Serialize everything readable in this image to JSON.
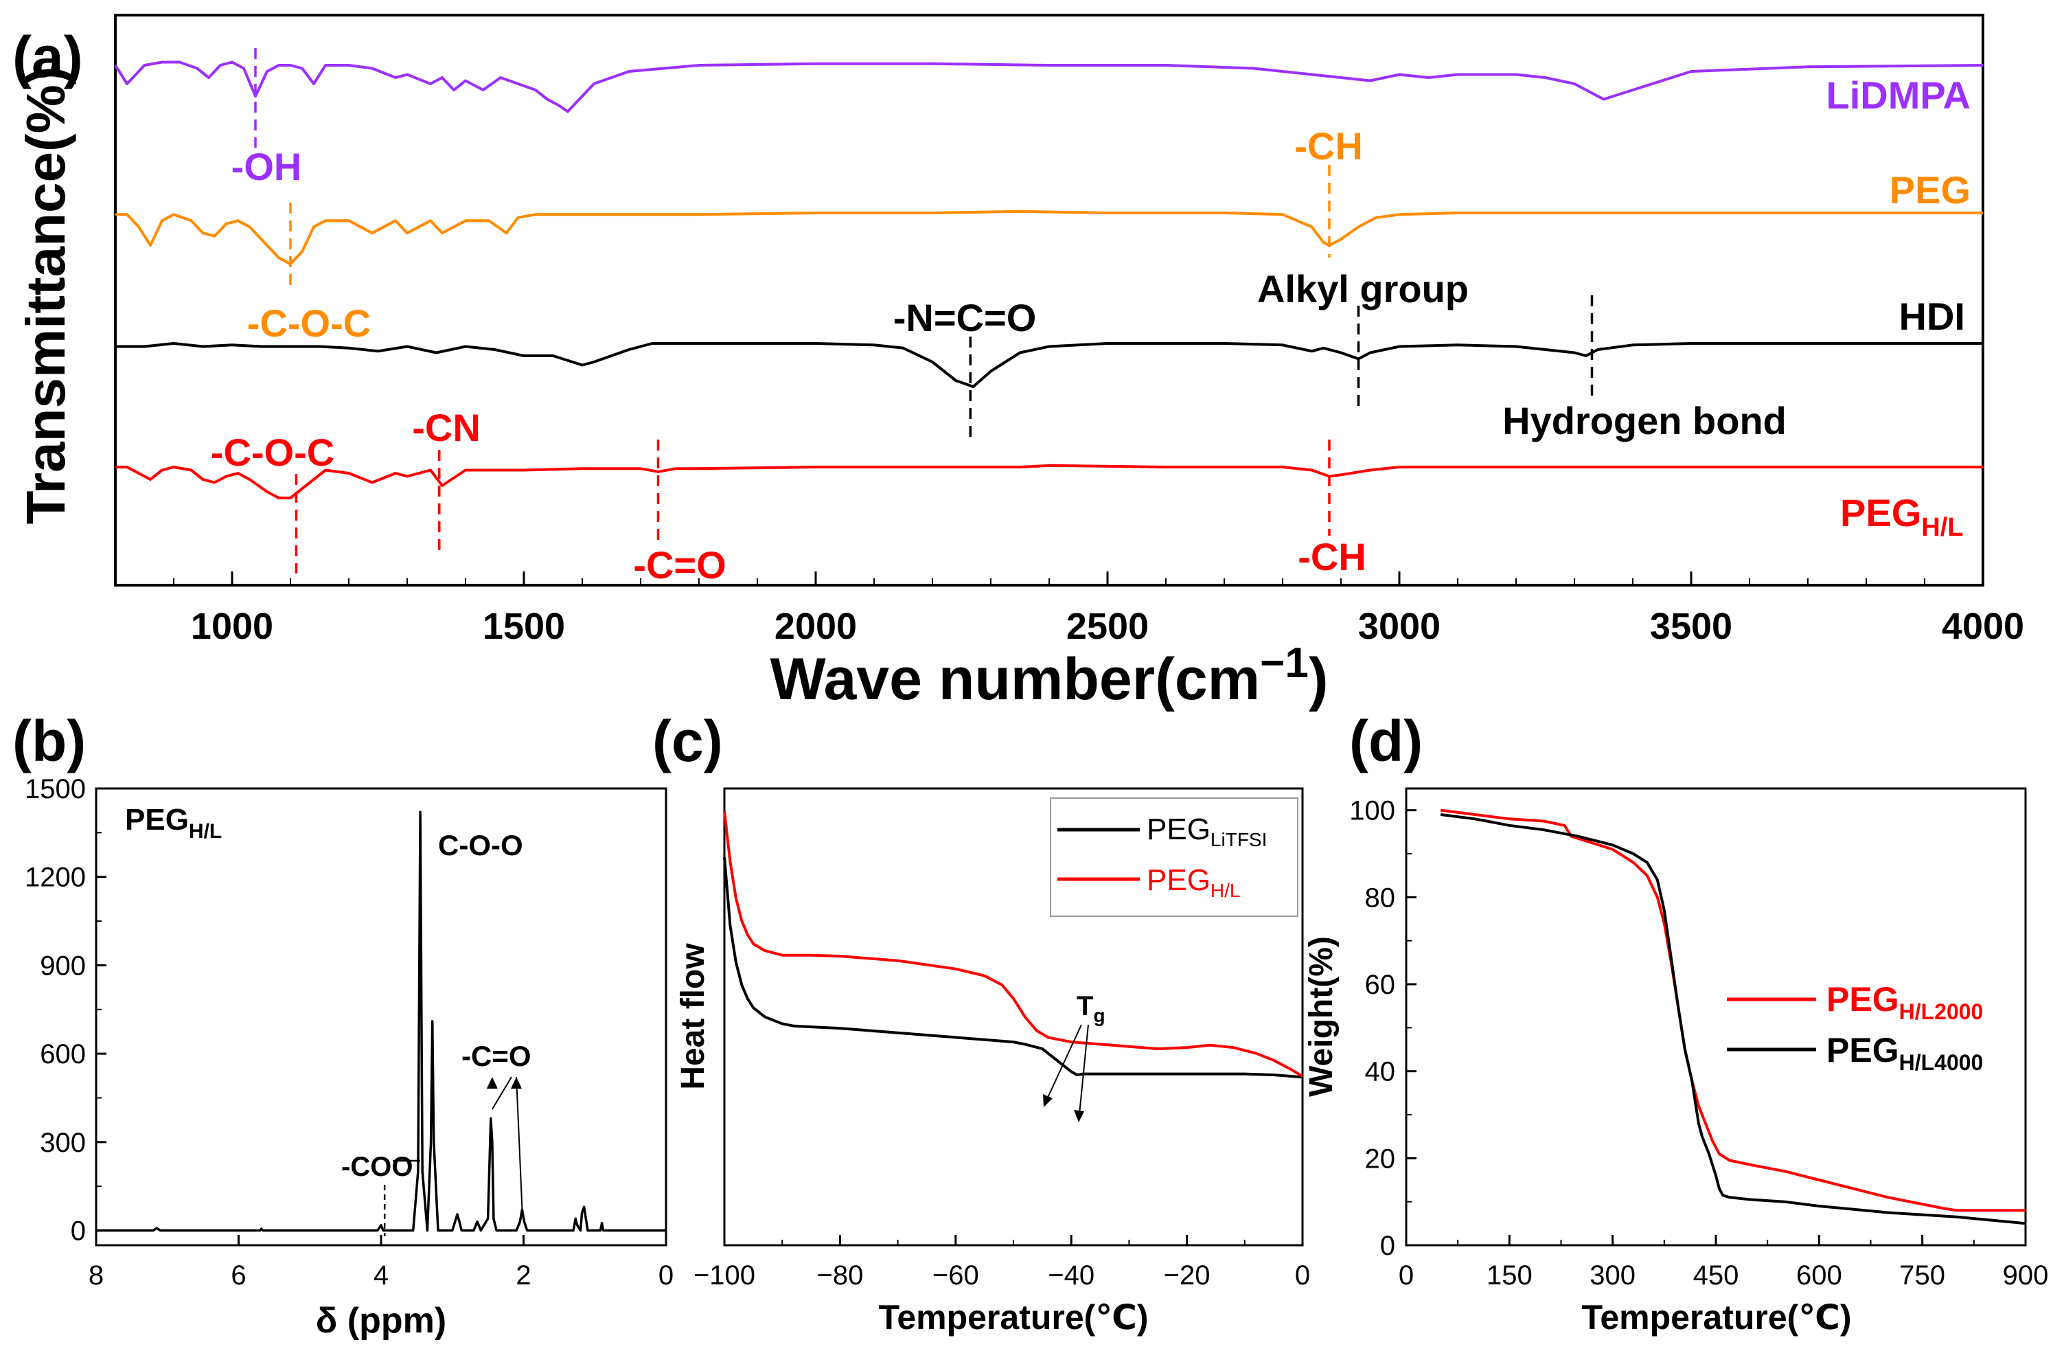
{
  "chart_data": [
    {
      "panel": "(a)",
      "type": "line",
      "xlabel": "Wave number(cm⁻¹)",
      "xlabel_main": "Wave number(cm",
      "xlabel_sup": "−1",
      "xlabel_close": ")",
      "ylabel": "Transmittance(%)",
      "xlim": [
        800,
        4000
      ],
      "ylim": [
        0,
        100
      ],
      "xticks": [
        "1000",
        "1500",
        "2000",
        "2500",
        "3000",
        "3500",
        "4000"
      ],
      "xtick_values": [
        1000,
        1500,
        2000,
        2500,
        3000,
        3500,
        4000
      ],
      "series": [
        {
          "name": "LiDMPA",
          "color": "#9b30ff",
          "x": [
            800,
            820,
            850,
            880,
            910,
            940,
            960,
            980,
            1000,
            1020,
            1040,
            1060,
            1080,
            1100,
            1120,
            1140,
            1160,
            1200,
            1240,
            1280,
            1300,
            1340,
            1360,
            1380,
            1400,
            1430,
            1460,
            1490,
            1520,
            1540,
            1560,
            1575,
            1590,
            1620,
            1680,
            1800,
            2000,
            2200,
            2400,
            2600,
            2750,
            2850,
            2900,
            2950,
            3000,
            3050,
            3100,
            3200,
            3250,
            3300,
            3350,
            3400,
            3500,
            3700,
            4000
          ],
          "y": [
            96,
            90,
            96,
            97,
            97,
            95,
            92,
            96,
            97,
            95,
            86,
            94,
            96,
            96,
            95,
            90,
            96,
            96,
            95,
            92,
            93,
            90,
            92,
            88,
            91,
            88,
            92,
            90,
            88,
            85,
            83,
            81,
            84,
            90,
            94,
            96,
            96.5,
            96.5,
            96,
            96,
            95,
            93,
            92,
            91,
            93,
            92,
            93,
            93,
            92,
            90,
            85,
            88,
            94,
            95.5,
            96
          ]
        },
        {
          "name": "PEG",
          "color": "#ff8c00",
          "x": [
            800,
            820,
            840,
            860,
            880,
            900,
            930,
            950,
            970,
            990,
            1010,
            1030,
            1060,
            1080,
            1100,
            1120,
            1140,
            1160,
            1200,
            1240,
            1280,
            1300,
            1340,
            1360,
            1400,
            1440,
            1470,
            1490,
            1520,
            1600,
            1800,
            2000,
            2200,
            2350,
            2500,
            2700,
            2800,
            2850,
            2870,
            2880,
            2900,
            2930,
            2960,
            3000,
            3100,
            3300,
            3500,
            4000
          ],
          "y": [
            72,
            72,
            68,
            62,
            70,
            72,
            70,
            66,
            65,
            69,
            70,
            68,
            62,
            58,
            56,
            60,
            68,
            70,
            70,
            66,
            70,
            66,
            70,
            66,
            70,
            70,
            66,
            71,
            72,
            72,
            72,
            72.5,
            72.5,
            73,
            72.5,
            72.5,
            72,
            68,
            63,
            62,
            64,
            68,
            71,
            72,
            72.5,
            72.5,
            72.5,
            72.5
          ]
        },
        {
          "name": "HDI",
          "color": "#000000",
          "x": [
            800,
            850,
            900,
            950,
            1000,
            1050,
            1100,
            1150,
            1200,
            1250,
            1300,
            1350,
            1400,
            1450,
            1500,
            1550,
            1600,
            1620,
            1650,
            1680,
            1700,
            1720,
            1800,
            2000,
            2100,
            2150,
            2200,
            2240,
            2270,
            2300,
            2350,
            2400,
            2500,
            2700,
            2800,
            2850,
            2870,
            2900,
            2930,
            2950,
            3000,
            3100,
            3200,
            3300,
            3320,
            3340,
            3400,
            3500,
            4000
          ],
          "y": [
            48,
            48,
            49,
            48,
            48.5,
            48,
            48,
            48,
            47.5,
            46.5,
            48,
            46,
            48,
            47,
            45,
            45,
            42,
            43,
            45,
            47,
            48,
            49,
            49,
            49,
            48.5,
            47.5,
            43,
            37,
            35,
            40,
            46,
            48,
            49,
            49,
            48.5,
            46.5,
            47.5,
            46,
            44,
            46,
            48,
            48.5,
            48,
            46,
            45,
            47,
            48.5,
            49,
            49
          ]
        },
        {
          "name": "PEG_H/L",
          "color": "#ff0000",
          "x": [
            800,
            820,
            840,
            860,
            880,
            900,
            930,
            950,
            970,
            990,
            1010,
            1030,
            1060,
            1080,
            1100,
            1120,
            1140,
            1160,
            1200,
            1240,
            1280,
            1300,
            1340,
            1360,
            1400,
            1450,
            1500,
            1600,
            1700,
            1730,
            1760,
            1800,
            2000,
            2200,
            2350,
            2400,
            2600,
            2800,
            2850,
            2880,
            2900,
            2950,
            3000,
            3100,
            3300,
            3500,
            4000
          ],
          "y": [
            26,
            26,
            24,
            22,
            25,
            26,
            25,
            22,
            21,
            23,
            24,
            22,
            18,
            16,
            16,
            19,
            22,
            25,
            24,
            21,
            24,
            23,
            25,
            20,
            25,
            25,
            25,
            25.5,
            25.5,
            24.5,
            25.5,
            25.5,
            26,
            26,
            26,
            26.5,
            26,
            26,
            25,
            23,
            23.5,
            25,
            26,
            26,
            26,
            26,
            26
          ]
        }
      ],
      "legend": [
        "LiDMPA",
        "PEG",
        "HDI",
        "PEG_H/L"
      ],
      "legend_labels": {
        "lidmpa": "LiDMPA",
        "peg": "PEG",
        "hdi": "HDI",
        "peg_hl_main": "PEG",
        "peg_hl_sub": "H/L"
      },
      "annotations": {
        "oh": {
          "text": "-OH",
          "x": 1040
        },
        "ch_top": {
          "text": "-CH",
          "x": 2880
        },
        "coc_orange": {
          "text": "-C-O-C",
          "x": 1100
        },
        "nco": {
          "text": "-N=C=O",
          "x": 2265
        },
        "alkyl": {
          "text": "Alkyl group",
          "x": 2930
        },
        "hbond": {
          "text": "Hydrogen bond",
          "x": 3330
        },
        "coc_red": {
          "text": "-C-O-C",
          "x": 1110
        },
        "cn": {
          "text": "-CN",
          "x": 1355
        },
        "co_red": {
          "text": "-C=O",
          "x": 1730
        },
        "ch_bottom": {
          "text": "-CH",
          "x": 2880
        }
      }
    },
    {
      "panel": "(b)",
      "type": "line",
      "xlabel": "δ (ppm)",
      "ylabel": "",
      "xlim": [
        8,
        0
      ],
      "ylim": [
        -50,
        1500
      ],
      "xticks": [
        "8",
        "6",
        "4",
        "2",
        "0"
      ],
      "xtick_values": [
        8,
        6,
        4,
        2,
        0
      ],
      "yticks": [
        "0",
        "300",
        "600",
        "900",
        "1200",
        "1500"
      ],
      "ytick_values": [
        0,
        300,
        600,
        900,
        1200,
        1500
      ],
      "series": [
        {
          "name": "PEG_H/L",
          "color": "#000000",
          "x": [
            8,
            7.2,
            7.15,
            7.1,
            5.7,
            5.68,
            5.66,
            4.05,
            4.0,
            3.97,
            3.94,
            3.9,
            3.55,
            3.48,
            3.45,
            3.42,
            3.35,
            3.3,
            3.28,
            3.26,
            3.2,
            3.0,
            2.93,
            2.9,
            2.87,
            2.8,
            2.7,
            2.65,
            2.6,
            2.5,
            2.46,
            2.44,
            2.42,
            2.38,
            2.3,
            2.1,
            2.05,
            2.02,
            1.99,
            1.95,
            1.6,
            1.3,
            1.27,
            1.25,
            1.2,
            1.18,
            1.15,
            1.1,
            1.0,
            0.92,
            0.9,
            0.88,
            0.8,
            0
          ],
          "y": [
            0,
            0,
            8,
            0,
            0,
            6,
            0,
            0,
            18,
            0,
            0,
            0,
            0,
            200,
            1420,
            200,
            0,
            300,
            710,
            300,
            0,
            0,
            55,
            30,
            0,
            0,
            0,
            30,
            0,
            40,
            380,
            300,
            40,
            0,
            0,
            0,
            30,
            70,
            30,
            0,
            0,
            0,
            40,
            20,
            0,
            60,
            80,
            0,
            0,
            0,
            25,
            0,
            0,
            0
          ]
        }
      ],
      "label_main": "PEG",
      "label_sub": "H/L",
      "annotations": {
        "coo": {
          "text": "-COO",
          "x": 3.95
        },
        "coo_peak": {
          "text": "C-O-O",
          "x": 3.45
        },
        "co": {
          "text": "-C=O",
          "x": 2.3
        }
      }
    },
    {
      "panel": "(c)",
      "type": "line",
      "xlabel": "Temperature(℃)",
      "ylabel": "Heat flow",
      "xlim": [
        -100,
        0
      ],
      "ylim": [
        0,
        100
      ],
      "xticks": [
        "−100",
        "−80",
        "−60",
        "−40",
        "−20",
        "0"
      ],
      "xtick_values": [
        -100,
        -80,
        -60,
        -40,
        -20,
        0
      ],
      "series": [
        {
          "name": "PEG_LiTFSI",
          "color": "#000000",
          "x": [
            -100,
            -99,
            -98,
            -97,
            -96,
            -95,
            -93,
            -91,
            -90,
            -88,
            -85,
            -80,
            -70,
            -60,
            -55,
            -50,
            -48,
            -45,
            -42,
            -40,
            -39,
            -38,
            -35,
            -30,
            -20,
            -10,
            -5,
            0
          ],
          "y": [
            85,
            70,
            62,
            57,
            54,
            52,
            50,
            49,
            48.5,
            48,
            47.8,
            47.5,
            46.5,
            45.5,
            45,
            44.5,
            44,
            43,
            40,
            38,
            37.3,
            37.5,
            37.5,
            37.5,
            37.5,
            37.5,
            37.3,
            36.8
          ]
        },
        {
          "name": "PEG_H/L",
          "color": "#ff0000",
          "x": [
            -100,
            -99,
            -98,
            -97,
            -96,
            -95,
            -93,
            -90,
            -88,
            -85,
            -80,
            -70,
            -60,
            -55,
            -52,
            -50,
            -48,
            -46,
            -44,
            -42,
            -40,
            -35,
            -30,
            -25,
            -20,
            -16,
            -12,
            -8,
            -5,
            -2,
            0
          ],
          "y": [
            95,
            84,
            76,
            71,
            68,
            66,
            64.5,
            63.5,
            63.5,
            63.5,
            63.3,
            62.3,
            60.5,
            59,
            57,
            54,
            50,
            47,
            45.5,
            45,
            44.5,
            44,
            43.5,
            43,
            43.3,
            43.8,
            43.3,
            42,
            40.5,
            38.5,
            37
          ]
        }
      ],
      "legend": [
        "PEG_LiTFSI",
        "PEG_H/L"
      ],
      "legend_labels": {
        "litfsi_main": "PEG",
        "litfsi_sub": "LiTFSI",
        "hl_main": "PEG",
        "hl_sub": "H/L"
      },
      "legend_placement": "top-right",
      "annotations": {
        "tg_main": "T",
        "tg_sub": "g"
      }
    },
    {
      "panel": "(d)",
      "type": "line",
      "xlabel": "Temperature(℃)",
      "ylabel": "Weight(%)",
      "xlim": [
        0,
        900
      ],
      "ylim": [
        0,
        105
      ],
      "xticks": [
        "0",
        "150",
        "300",
        "450",
        "600",
        "750",
        "900"
      ],
      "xtick_values": [
        0,
        150,
        300,
        450,
        600,
        750,
        900
      ],
      "yticks": [
        "0",
        "20",
        "40",
        "60",
        "80",
        "100"
      ],
      "ytick_values": [
        0,
        20,
        40,
        60,
        80,
        100
      ],
      "series": [
        {
          "name": "PEG_H/L2000",
          "color": "#ff0000",
          "x": [
            50,
            100,
            150,
            200,
            230,
            240,
            260,
            300,
            330,
            350,
            365,
            375,
            385,
            395,
            405,
            415,
            425,
            435,
            445,
            455,
            470,
            500,
            550,
            600,
            700,
            780,
            800,
            900
          ],
          "y": [
            100,
            99,
            98,
            97.5,
            96.5,
            94,
            93,
            91,
            88,
            85,
            80,
            74,
            65,
            55,
            45,
            38,
            32,
            28,
            24,
            21,
            19.5,
            18.5,
            17,
            15,
            11,
            8.5,
            8,
            8
          ]
        },
        {
          "name": "PEG_H/L4000",
          "color": "#000000",
          "x": [
            50,
            100,
            150,
            200,
            250,
            300,
            330,
            350,
            365,
            375,
            385,
            395,
            405,
            415,
            420,
            425,
            430,
            440,
            450,
            455,
            460,
            470,
            500,
            550,
            600,
            700,
            800,
            900
          ],
          "y": [
            99,
            98,
            96.5,
            95.5,
            94,
            92,
            90,
            88,
            84,
            77,
            66,
            55,
            45,
            38,
            33,
            28,
            25,
            21,
            16,
            13,
            11.5,
            11,
            10.5,
            10,
            9,
            7.5,
            6.5,
            5
          ]
        }
      ],
      "legend": [
        "PEG_H/L2000",
        "PEG_H/L4000"
      ],
      "legend_labels": {
        "l2000_main": "PEG",
        "l2000_sub": "H/L2000",
        "l4000_main": "PEG",
        "l4000_sub": "H/L4000"
      },
      "legend_placement": "right"
    }
  ]
}
